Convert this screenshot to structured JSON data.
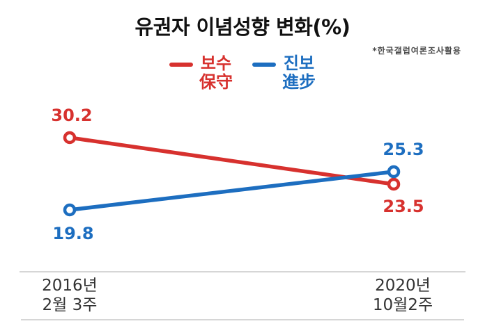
{
  "title": "유권자 이념성향 변화(%)",
  "note": "*한국갤럽여론조사활용",
  "legend": [
    {
      "label_ko": "보수",
      "label_hanja": "保守",
      "color": "#d7312e"
    },
    {
      "label_ko": "진보",
      "label_hanja": "進步",
      "color": "#1d6ec0"
    }
  ],
  "chart_data": {
    "type": "line",
    "title": "유권자 이념성향 변화(%)",
    "source_note": "*한국갤럽여론조사활용",
    "categories": [
      "2016년 2월 3주",
      "2020년 10월2주"
    ],
    "x_labels": [
      [
        "2016년",
        "2월 3주"
      ],
      [
        "2020년",
        "10월2주"
      ]
    ],
    "series": [
      {
        "name": "보수 保守",
        "color": "#d7312e",
        "values": [
          30.2,
          23.5
        ]
      },
      {
        "name": "진보 進步",
        "color": "#1d6ec0",
        "values": [
          19.8,
          25.3
        ]
      }
    ],
    "ylim": [
      18,
      32
    ],
    "grid": false,
    "legend_position": "top",
    "marker": "open-circle"
  }
}
